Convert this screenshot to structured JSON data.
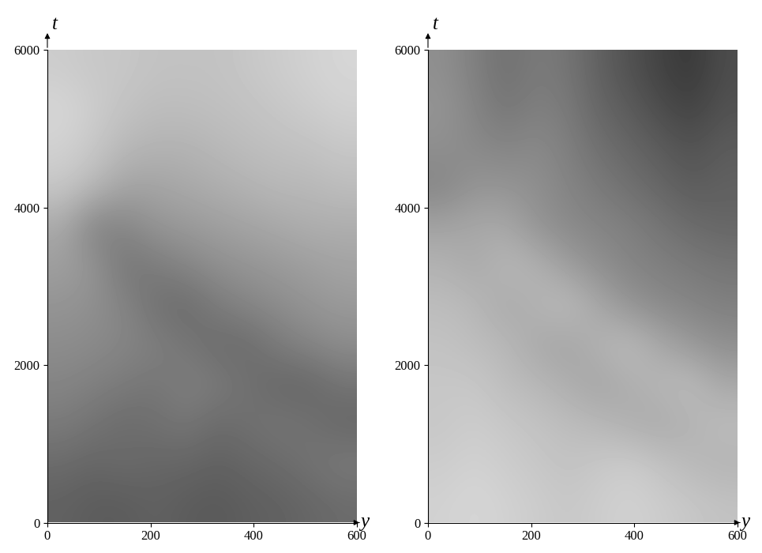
{
  "chart_data": [
    {
      "type": "heatmap",
      "xlabel": "y",
      "ylabel": "t",
      "color": "gray",
      "xlim": [
        0,
        600
      ],
      "ylim": [
        0,
        6000
      ],
      "xticks": [
        0,
        200,
        400,
        600
      ],
      "yticks": [
        0,
        2000,
        4000,
        6000
      ],
      "value_range": [
        0,
        1
      ],
      "cells": [
        [
          0.38,
          0.36,
          0.36,
          0.38,
          0.36,
          0.35,
          0.37,
          0.38,
          0.4,
          0.42
        ],
        [
          0.42,
          0.4,
          0.42,
          0.4,
          0.4,
          0.38,
          0.4,
          0.42,
          0.45,
          0.48
        ],
        [
          0.48,
          0.45,
          0.42,
          0.44,
          0.46,
          0.42,
          0.44,
          0.46,
          0.44,
          0.4
        ],
        [
          0.52,
          0.5,
          0.48,
          0.46,
          0.5,
          0.48,
          0.44,
          0.4,
          0.4,
          0.45
        ],
        [
          0.55,
          0.54,
          0.52,
          0.5,
          0.46,
          0.42,
          0.42,
          0.48,
          0.52,
          0.55
        ],
        [
          0.58,
          0.56,
          0.52,
          0.44,
          0.42,
          0.48,
          0.52,
          0.55,
          0.58,
          0.6
        ],
        [
          0.62,
          0.58,
          0.46,
          0.48,
          0.52,
          0.56,
          0.58,
          0.6,
          0.62,
          0.64
        ],
        [
          0.66,
          0.5,
          0.52,
          0.58,
          0.6,
          0.62,
          0.64,
          0.66,
          0.68,
          0.68
        ],
        [
          0.78,
          0.72,
          0.64,
          0.64,
          0.66,
          0.68,
          0.7,
          0.72,
          0.72,
          0.74
        ],
        [
          0.82,
          0.78,
          0.72,
          0.7,
          0.7,
          0.72,
          0.74,
          0.75,
          0.76,
          0.78
        ],
        [
          0.84,
          0.8,
          0.76,
          0.74,
          0.74,
          0.75,
          0.76,
          0.78,
          0.8,
          0.82
        ],
        [
          0.8,
          0.78,
          0.78,
          0.76,
          0.76,
          0.76,
          0.78,
          0.8,
          0.82,
          0.84
        ]
      ]
    },
    {
      "type": "heatmap",
      "xlabel": "y",
      "ylabel": "t",
      "color": "gray",
      "xlim": [
        0,
        600
      ],
      "ylim": [
        0,
        6000
      ],
      "xticks": [
        0,
        200,
        400,
        600
      ],
      "yticks": [
        0,
        2000,
        4000,
        6000
      ],
      "value_range": [
        0,
        1
      ],
      "cells": [
        [
          0.82,
          0.84,
          0.82,
          0.8,
          0.78,
          0.8,
          0.82,
          0.8,
          0.78,
          0.76
        ],
        [
          0.8,
          0.82,
          0.8,
          0.78,
          0.76,
          0.78,
          0.8,
          0.76,
          0.72,
          0.7
        ],
        [
          0.78,
          0.8,
          0.78,
          0.76,
          0.74,
          0.72,
          0.68,
          0.66,
          0.7,
          0.74
        ],
        [
          0.78,
          0.78,
          0.74,
          0.72,
          0.68,
          0.64,
          0.68,
          0.72,
          0.74,
          0.66
        ],
        [
          0.76,
          0.74,
          0.72,
          0.66,
          0.64,
          0.7,
          0.74,
          0.66,
          0.6,
          0.56
        ],
        [
          0.74,
          0.72,
          0.66,
          0.7,
          0.74,
          0.66,
          0.58,
          0.54,
          0.52,
          0.5
        ],
        [
          0.7,
          0.66,
          0.72,
          0.7,
          0.62,
          0.56,
          0.52,
          0.5,
          0.48,
          0.46
        ],
        [
          0.64,
          0.66,
          0.66,
          0.58,
          0.54,
          0.52,
          0.5,
          0.46,
          0.42,
          0.4
        ],
        [
          0.52,
          0.58,
          0.58,
          0.56,
          0.52,
          0.48,
          0.44,
          0.4,
          0.36,
          0.38
        ],
        [
          0.56,
          0.54,
          0.52,
          0.54,
          0.5,
          0.44,
          0.4,
          0.36,
          0.32,
          0.36
        ],
        [
          0.58,
          0.52,
          0.46,
          0.5,
          0.48,
          0.4,
          0.36,
          0.3,
          0.26,
          0.32
        ],
        [
          0.56,
          0.5,
          0.44,
          0.48,
          0.46,
          0.38,
          0.32,
          0.26,
          0.22,
          0.3
        ]
      ]
    }
  ]
}
